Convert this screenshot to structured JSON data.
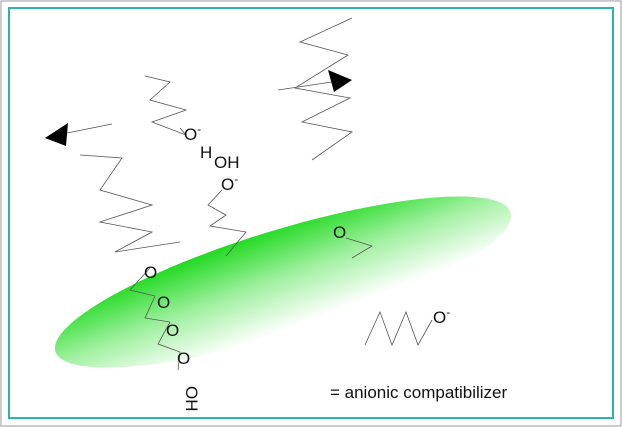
{
  "labels": [
    {
      "text": "O",
      "sup": "-"
    },
    {
      "text": "H"
    },
    {
      "text": "OH"
    },
    {
      "text": "O",
      "sup": "-"
    },
    {
      "text": "O"
    },
    {
      "text": "O"
    },
    {
      "text": "O"
    },
    {
      "text": "O"
    },
    {
      "text": "O"
    },
    {
      "text": "OH"
    },
    {
      "text": "O",
      "sup": "-"
    }
  ],
  "legend": "= anionic compatibilizer"
}
